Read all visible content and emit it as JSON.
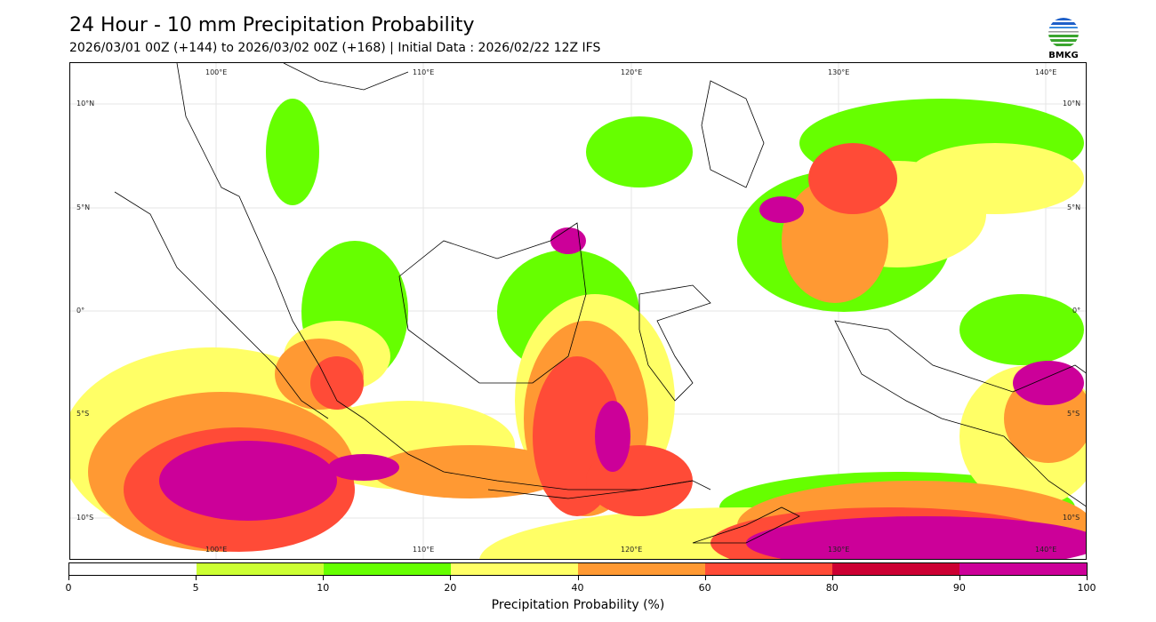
{
  "header": {
    "title": "24 Hour - 10 mm Precipitation Probability",
    "subtitle": "2026/03/01 00Z (+144) to 2026/03/02 00Z (+168) | Initial Data : 2026/02/22 12Z IFS",
    "logo_text": "BMKG"
  },
  "map": {
    "lon_labels": [
      "100°E",
      "110°E",
      "120°E",
      "130°E",
      "140°E"
    ],
    "lat_labels": [
      "10°N",
      "5°N",
      "0°",
      "5°S",
      "10°S"
    ]
  },
  "colorbar": {
    "label": "Precipitation Probability (%)",
    "ticks": [
      "0",
      "5",
      "10",
      "20",
      "40",
      "60",
      "80",
      "90",
      "100"
    ],
    "colors": [
      "#ffffff",
      "#ccff33",
      "#66ff00",
      "#ffff66",
      "#ff9933",
      "#ff4b37",
      "#cc0033",
      "#cc0099"
    ]
  }
}
